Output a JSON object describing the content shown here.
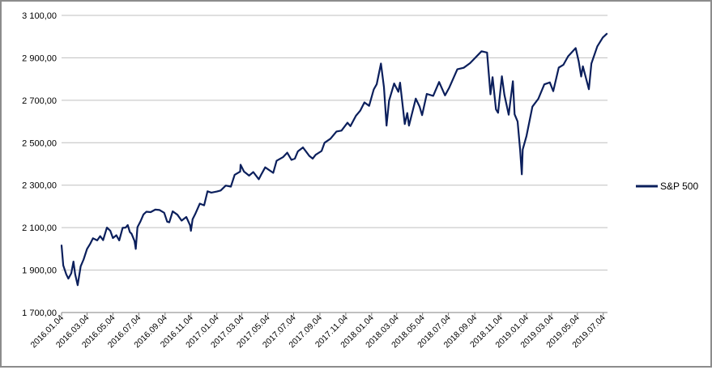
{
  "chart_data": {
    "type": "line",
    "title": "",
    "xlabel": "",
    "ylabel": "",
    "ylim": [
      1700,
      3100
    ],
    "y_ticks": [
      "1 700,00",
      "1 900,00",
      "2 100,00",
      "2 300,00",
      "2 500,00",
      "2 700,00",
      "2 900,00",
      "3 100,00"
    ],
    "x_ticks": [
      "2016.01.04",
      "2016.03.04",
      "2016.05.04",
      "2016.07.04",
      "2016.09.04",
      "2016.11.04",
      "2017.01.04",
      "2017.03.04",
      "2017.05.04",
      "2017.07.04",
      "2017.09.04",
      "2017.11.04",
      "2018.01.04",
      "2018.03.04",
      "2018.05.04",
      "2018.07.04",
      "2018.09.04",
      "2018.11.04",
      "2019.01.04",
      "2019.03.04",
      "2019.05.04",
      "2019.07.04"
    ],
    "grid": true,
    "legend": "right",
    "colors": {
      "line": "#0b1f5c",
      "grid": "#bfbfbf",
      "axis": "#808080",
      "text": "#000000"
    },
    "series": [
      {
        "name": "S&P 500",
        "x": [
          "2016-01-04",
          "2016-01-08",
          "2016-01-15",
          "2016-01-20",
          "2016-01-27",
          "2016-02-01",
          "2016-02-05",
          "2016-02-11",
          "2016-02-18",
          "2016-02-25",
          "2016-03-04",
          "2016-03-11",
          "2016-03-18",
          "2016-03-28",
          "2016-04-04",
          "2016-04-11",
          "2016-04-20",
          "2016-04-28",
          "2016-05-04",
          "2016-05-12",
          "2016-05-19",
          "2016-05-27",
          "2016-06-03",
          "2016-06-08",
          "2016-06-13",
          "2016-06-17",
          "2016-06-24",
          "2016-06-27",
          "2016-07-01",
          "2016-07-08",
          "2016-07-15",
          "2016-07-22",
          "2016-08-01",
          "2016-08-12",
          "2016-08-22",
          "2016-09-02",
          "2016-09-09",
          "2016-09-14",
          "2016-09-22",
          "2016-10-03",
          "2016-10-13",
          "2016-10-24",
          "2016-11-02",
          "2016-11-04",
          "2016-11-08",
          "2016-11-14",
          "2016-11-25",
          "2016-12-05",
          "2016-12-13",
          "2016-12-22",
          "2017-01-04",
          "2017-01-13",
          "2017-01-25",
          "2017-02-06",
          "2017-02-15",
          "2017-02-28",
          "2017-03-01",
          "2017-03-09",
          "2017-03-21",
          "2017-03-31",
          "2017-04-13",
          "2017-04-20",
          "2017-04-28",
          "2017-05-17",
          "2017-05-25",
          "2017-06-09",
          "2017-06-19",
          "2017-06-29",
          "2017-07-07",
          "2017-07-14",
          "2017-07-26",
          "2017-08-10",
          "2017-08-18",
          "2017-08-25",
          "2017-09-08",
          "2017-09-15",
          "2017-09-29",
          "2017-10-13",
          "2017-10-25",
          "2017-11-08",
          "2017-11-15",
          "2017-11-28",
          "2017-12-08",
          "2017-12-18",
          "2017-12-29",
          "2018-01-09",
          "2018-01-16",
          "2018-01-26",
          "2018-02-02",
          "2018-02-08",
          "2018-02-14",
          "2018-02-26",
          "2018-03-08",
          "2018-03-12",
          "2018-03-23",
          "2018-03-29",
          "2018-04-02",
          "2018-04-18",
          "2018-04-27",
          "2018-05-03",
          "2018-05-14",
          "2018-05-29",
          "2018-06-12",
          "2018-06-26",
          "2018-07-06",
          "2018-07-25",
          "2018-08-09",
          "2018-08-24",
          "2018-09-20",
          "2018-10-03",
          "2018-10-11",
          "2018-10-16",
          "2018-10-24",
          "2018-10-29",
          "2018-11-07",
          "2018-11-13",
          "2018-11-23",
          "2018-12-03",
          "2018-12-07",
          "2018-12-14",
          "2018-12-20",
          "2018-12-24",
          "2018-12-26",
          "2019-01-04",
          "2019-01-18",
          "2019-02-01",
          "2019-02-15",
          "2019-02-28",
          "2019-03-08",
          "2019-03-21",
          "2019-04-01",
          "2019-04-12",
          "2019-04-30",
          "2019-05-07",
          "2019-05-13",
          "2019-05-17",
          "2019-05-31",
          "2019-06-06",
          "2019-06-20",
          "2019-07-03",
          "2019-07-12"
        ],
        "values": [
          2016,
          1922,
          1880,
          1860,
          1885,
          1940,
          1880,
          1829,
          1918,
          1950,
          1999,
          2022,
          2050,
          2040,
          2060,
          2041,
          2100,
          2085,
          2051,
          2064,
          2040,
          2099,
          2100,
          2112,
          2079,
          2071,
          2037,
          2000,
          2102,
          2129,
          2162,
          2175,
          2173,
          2185,
          2183,
          2170,
          2128,
          2125,
          2177,
          2161,
          2133,
          2150,
          2111,
          2085,
          2140,
          2164,
          2213,
          2205,
          2271,
          2265,
          2270,
          2275,
          2298,
          2293,
          2349,
          2364,
          2396,
          2364,
          2345,
          2362,
          2328,
          2355,
          2384,
          2358,
          2415,
          2432,
          2453,
          2419,
          2425,
          2459,
          2478,
          2438,
          2425,
          2443,
          2461,
          2500,
          2519,
          2553,
          2557,
          2594,
          2578,
          2627,
          2651,
          2690,
          2674,
          2751,
          2776,
          2873,
          2762,
          2581,
          2698,
          2779,
          2740,
          2783,
          2588,
          2640,
          2581,
          2708,
          2670,
          2630,
          2730,
          2721,
          2786,
          2723,
          2760,
          2846,
          2853,
          2875,
          2931,
          2925,
          2728,
          2809,
          2657,
          2641,
          2813,
          2726,
          2632,
          2790,
          2634,
          2600,
          2467,
          2351,
          2468,
          2532,
          2670,
          2707,
          2775,
          2784,
          2743,
          2854,
          2867,
          2907,
          2946,
          2884,
          2812,
          2860,
          2752,
          2873,
          2954,
          2996,
          3013
        ]
      }
    ]
  }
}
